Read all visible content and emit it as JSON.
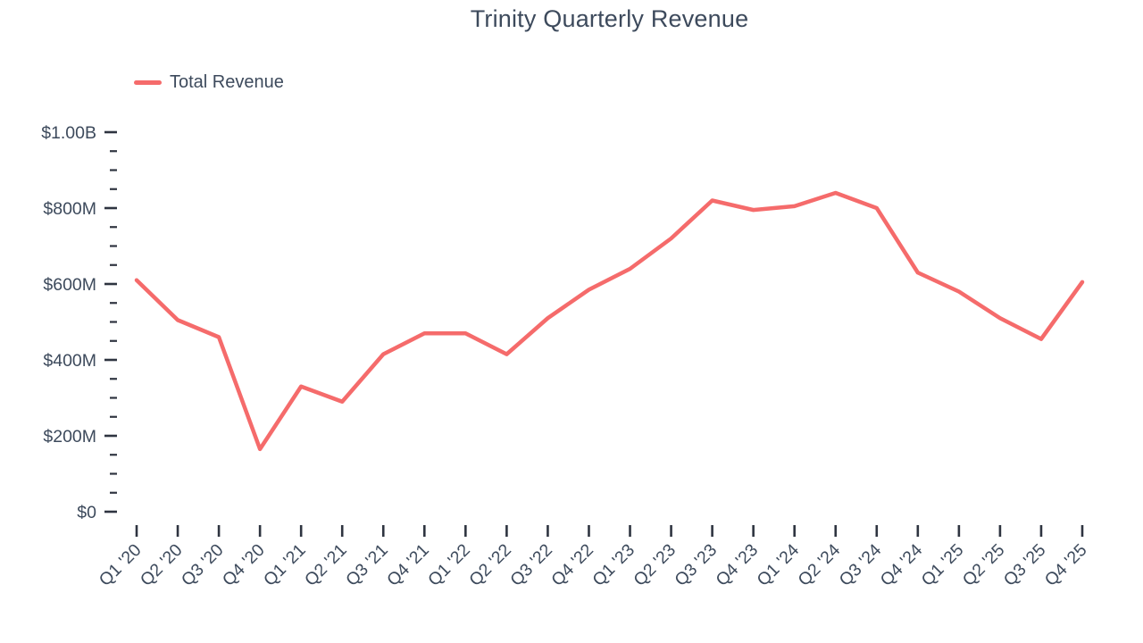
{
  "chart_data": {
    "type": "line",
    "title": "Trinity Quarterly Revenue",
    "legend_position": "top-left",
    "grid": "off",
    "categories": [
      "Q1 '20",
      "Q2 '20",
      "Q3 '20",
      "Q4 '20",
      "Q1 '21",
      "Q2 '21",
      "Q3 '21",
      "Q4 '21",
      "Q1 '22",
      "Q2 '22",
      "Q3 '22",
      "Q4 '22",
      "Q1 '23",
      "Q2 '23",
      "Q3 '23",
      "Q4 '23",
      "Q1 '24",
      "Q2 '24",
      "Q3 '24",
      "Q4 '24",
      "Q1 '25",
      "Q2 '25",
      "Q3 '25",
      "Q4 '25"
    ],
    "series": [
      {
        "name": "Total Revenue",
        "unit": "USD millions",
        "values": [
          610,
          505,
          460,
          165,
          330,
          290,
          415,
          470,
          470,
          415,
          510,
          585,
          640,
          720,
          820,
          795,
          805,
          840,
          800,
          630,
          580,
          510,
          455,
          605
        ]
      }
    ],
    "ylim": [
      0,
      1000
    ],
    "y_axis": {
      "major_step": 200,
      "minor_step": 50,
      "major": [
        {
          "value": 0,
          "label": "$0"
        },
        {
          "value": 200,
          "label": "$200M"
        },
        {
          "value": 400,
          "label": "$400M"
        },
        {
          "value": 600,
          "label": "$600M"
        },
        {
          "value": 800,
          "label": "$800M"
        },
        {
          "value": 1000,
          "label": "$1.00B"
        }
      ]
    },
    "x_tick_rotation": -45,
    "colors": {
      "line": "#f56b6b",
      "text": "#3d4a5c",
      "tick": "#2e3440"
    }
  }
}
